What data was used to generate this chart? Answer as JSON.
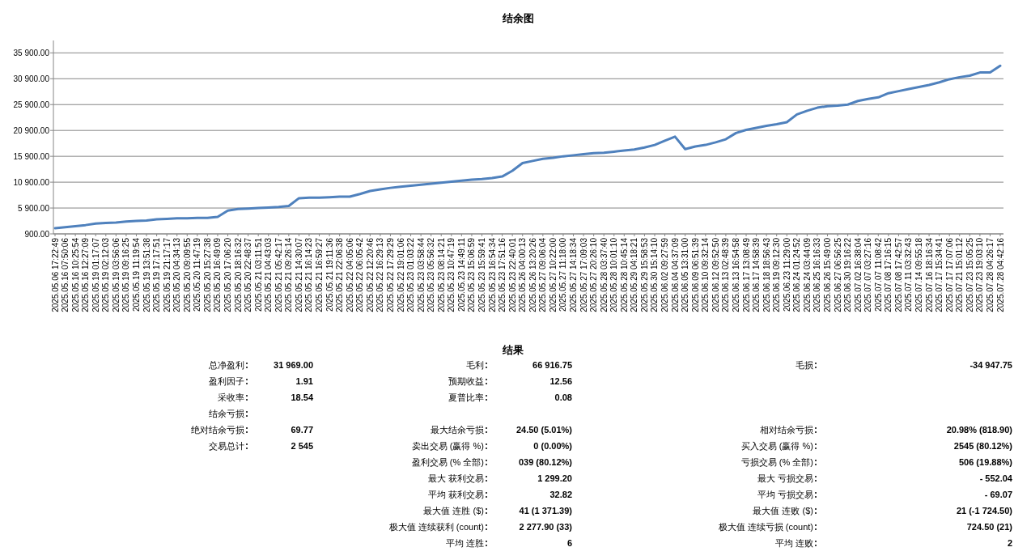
{
  "chart_data": [
    {
      "type": "line",
      "title": "结余图",
      "categories": [
        "2025.05.06 17:22:49",
        "2025.05.16 07:50:06",
        "2025.05.16 10:25:54",
        "2025.05.16 12:27:09",
        "2025.05.19 01:17:07",
        "2025.05.19 02:12:03",
        "2025.05.19 03:56:06",
        "2025.05.19 09:16:25",
        "2025.05.19 11:19:54",
        "2025.05.19 13:51:38",
        "2025.05.19 17:17:51",
        "2025.05.19 21:17:17",
        "2025.05.20 04:34:13",
        "2025.05.20 09:09:55",
        "2025.05.20 11:47:19",
        "2025.05.20 15:27:38",
        "2025.05.20 16:49:09",
        "2025.05.20 17:06:20",
        "2025.05.20 18:16:32",
        "2025.05.20 22:48:37",
        "2025.05.21 03:11:51",
        "2025.05.21 04:43:03",
        "2025.05.21 05:42:17",
        "2025.05.21 09:26:14",
        "2025.05.21 14:30:07",
        "2025.05.21 16:14:23",
        "2025.05.21 16:59:27",
        "2025.05.21 19:11:36",
        "2025.05.21 22:06:38",
        "2025.05.22 04:05:06",
        "2025.05.22 06:05:42",
        "2025.05.22 12:20:46",
        "2025.05.22 16:29:13",
        "2025.05.22 17:29:29",
        "2025.05.22 19:01:06",
        "2025.05.23 01:03:22",
        "2025.05.23 03:58:44",
        "2025.05.23 05:56:32",
        "2025.05.23 08:14:21",
        "2025.05.23 10:47:19",
        "2025.05.23 14:49:11",
        "2025.05.23 15:06:59",
        "2025.05.23 15:59:41",
        "2025.05.23 16:54:34",
        "2025.05.23 17:51:16",
        "2025.05.23 22:40:01",
        "2025.05.26 04:00:13",
        "2025.05.26 13:20:26",
        "2025.05.27 09:06:04",
        "2025.05.27 10:22:00",
        "2025.05.27 11:18:00",
        "2025.05.27 14:18:34",
        "2025.05.27 17:09:03",
        "2025.05.27 20:26:10",
        "2025.05.28 03:37:40",
        "2025.05.28 10:01:10",
        "2025.05.28 10:45:14",
        "2025.05.29 04:18:21",
        "2025.05.29 15:58:53",
        "2025.05.30 15:14:10",
        "2025.06.02 09:27:59",
        "2025.06.04 04:37:09",
        "2025.06.05 13:31:00",
        "2025.06.09 06:51:39",
        "2025.06.10 09:32:14",
        "2025.06.12 09:52:50",
        "2025.06.13 02:48:39",
        "2025.06.13 16:54:58",
        "2025.06.17 13:08:49",
        "2025.06.17 14:58:39",
        "2025.06.18 18:56:43",
        "2025.06.19 09:12:30",
        "2025.06.23 11:29:00",
        "2025.06.24 01:24:52",
        "2025.06.24 03:44:09",
        "2025.06.25 16:16:33",
        "2025.06.26 15:49:00",
        "2025.06.27 06:56:25",
        "2025.06.30 19:16:22",
        "2025.07.02 16:38:04",
        "2025.07.07 03:27:16",
        "2025.07.07 11:08:42",
        "2025.07.08 17:16:15",
        "2025.07.08 17:42:57",
        "2025.07.11 03:32:43",
        "2025.07.14 09:55:18",
        "2025.07.16 18:16:34",
        "2025.07.17 15:34:41",
        "2025.07.17 17:07:06",
        "2025.07.21 15:01:12",
        "2025.07.23 15:05:25",
        "2025.07.23 19:03:10",
        "2025.07.28 04:26:17",
        "2025.07.28 04:42:16"
      ],
      "series": [
        {
          "color": "#4f81bd",
          "values": [
            2000,
            2200,
            2400,
            2600,
            2900,
            3000,
            3100,
            3300,
            3400,
            3500,
            3700,
            3800,
            3900,
            3900,
            4000,
            4000,
            4200,
            5400,
            5700,
            5800,
            5900,
            6000,
            6100,
            6300,
            7800,
            7900,
            7900,
            8000,
            8100,
            8100,
            8600,
            9200,
            9500,
            9800,
            10000,
            10200,
            10400,
            10600,
            10800,
            11000,
            11200,
            11400,
            11500,
            11700,
            12000,
            13100,
            14600,
            15000,
            15400,
            15600,
            15900,
            16100,
            16300,
            16500,
            16600,
            16800,
            17000,
            17200,
            17600,
            18100,
            18900,
            19700,
            17300,
            17800,
            18100,
            18600,
            19200,
            20400,
            21000,
            21400,
            21800,
            22100,
            22500,
            24000,
            24700,
            25300,
            25600,
            25700,
            25900,
            26600,
            27000,
            27300,
            28100,
            28500,
            28900,
            29300,
            29700,
            30200,
            30800,
            31200,
            31500,
            32100,
            32100,
            33400
          ]
        }
      ],
      "ylim": [
        900,
        38300
      ],
      "yticks": [
        {
          "value": 900,
          "label": "900.00"
        },
        {
          "value": 5900,
          "label": "5 900.00"
        },
        {
          "value": 10900,
          "label": "10 900.00"
        },
        {
          "value": 15900,
          "label": "15 900.00"
        },
        {
          "value": 20900,
          "label": "20 900.00"
        },
        {
          "value": 25900,
          "label": "25 900.00"
        },
        {
          "value": 30900,
          "label": "30 900.00"
        },
        {
          "value": 35900,
          "label": "35 900.00"
        }
      ],
      "grid": "y",
      "marker": "none"
    },
    {
      "type": "other",
      "categories": [
        "总净盈利",
        "盈利因子",
        "采收率",
        "结余亏损",
        "绝对结余亏损",
        "交易总计"
      ],
      "value_labels": [
        "31 969.00",
        "1.91",
        "18.54",
        null,
        "69.77",
        "2 545"
      ]
    },
    {
      "type": "other",
      "title": "结果",
      "categories": [
        "毛利",
        "预期收益",
        "夏普比率",
        null,
        "最大结余亏损",
        "卖出交易 (赢得 %)",
        "盈利交易 (% 全部)",
        "最大 获利交易",
        "平均 获利交易",
        "最大值 连胜 ($)",
        "极大值 连续获利 (count)",
        "平均 连胜"
      ],
      "value_labels": [
        "66 916.75",
        "12.56",
        "0.08",
        null,
        "24.50 (5.01%)",
        "0 (0.00%)",
        "039 (80.12%)",
        "1 299.20",
        "32.82",
        "41 (1 371.39)",
        "2 277.90 (33)",
        "6"
      ]
    },
    {
      "type": "other",
      "categories": [
        "毛损",
        null,
        null,
        null,
        "相对结余亏损",
        "买入交易 (赢得 %)",
        "亏损交易 (% 全部)",
        "最大 亏损交易",
        "平均 亏损交易",
        "最大值 连败 ($)",
        "极大值 连续亏损 (count)",
        "平均 连败"
      ],
      "value_labels": [
        "-34 947.75",
        null,
        null,
        null,
        "20.98% (818.90)",
        "2545 (80.12%)",
        "506 (19.88%)",
        "- 552.04",
        "- 69.07",
        "21 (-1 724.50)",
        "724.50 (21)",
        "2"
      ]
    }
  ]
}
